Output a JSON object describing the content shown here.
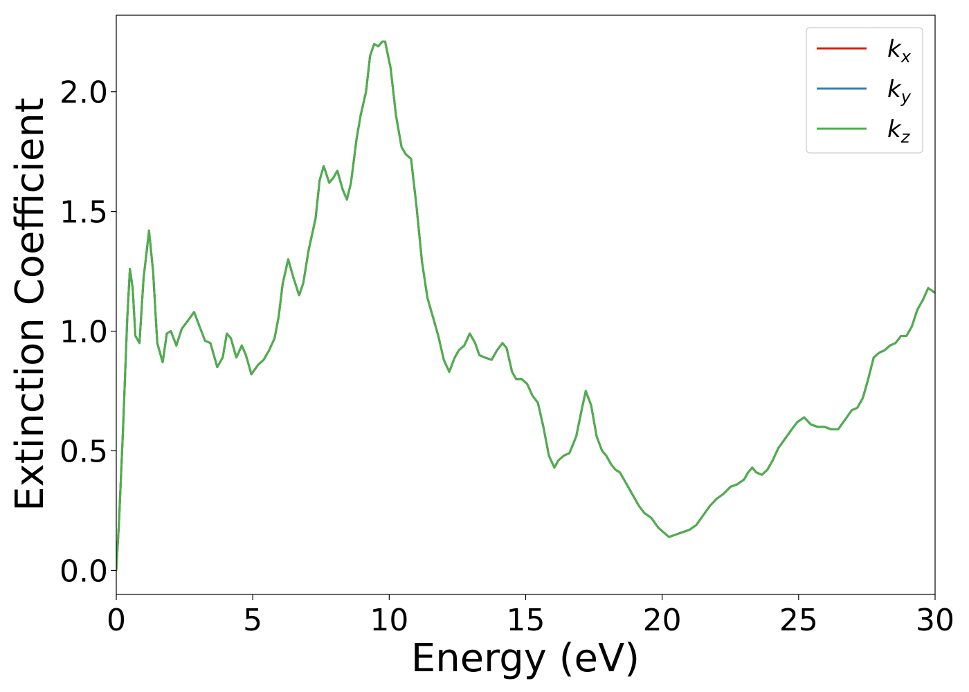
{
  "chart_data": {
    "type": "line",
    "xlabel": "Energy (eV)",
    "ylabel": "Extinction Coefficient",
    "xlim": [
      0,
      30
    ],
    "ylim": [
      -0.1,
      2.32
    ],
    "xticks": [
      "0",
      "5",
      "10",
      "15",
      "20",
      "25",
      "30"
    ],
    "yticks": [
      "0.0",
      "0.5",
      "1.0",
      "1.5",
      "2.0"
    ],
    "grid": false,
    "legend": {
      "placement": "top-right",
      "entries": [
        {
          "base": "k",
          "sub": "x",
          "color": "#e41a1c"
        },
        {
          "base": "k",
          "sub": "y",
          "color": "#377eb8"
        },
        {
          "base": "k",
          "sub": "z",
          "color": "#4daf4a"
        }
      ]
    },
    "x": [
      0,
      0.1,
      0.25,
      0.4,
      0.5,
      0.6,
      0.7,
      0.85,
      1.0,
      1.2,
      1.35,
      1.5,
      1.7,
      1.85,
      2.0,
      2.2,
      2.4,
      2.6,
      2.85,
      3.05,
      3.25,
      3.45,
      3.7,
      3.9,
      4.05,
      4.2,
      4.4,
      4.6,
      4.75,
      4.95,
      5.2,
      5.4,
      5.6,
      5.8,
      5.95,
      6.1,
      6.3,
      6.5,
      6.7,
      6.85,
      7.05,
      7.3,
      7.45,
      7.6,
      7.8,
      7.95,
      8.1,
      8.3,
      8.45,
      8.6,
      8.8,
      8.95,
      9.15,
      9.3,
      9.45,
      9.6,
      9.75,
      9.85,
      10.05,
      10.25,
      10.45,
      10.6,
      10.8,
      11.0,
      11.2,
      11.4,
      11.6,
      11.8,
      12.0,
      12.2,
      12.4,
      12.55,
      12.75,
      12.95,
      13.15,
      13.3,
      13.5,
      13.75,
      13.95,
      14.15,
      14.3,
      14.5,
      14.65,
      14.85,
      15.05,
      15.25,
      15.45,
      15.65,
      15.85,
      16.05,
      16.2,
      16.4,
      16.6,
      16.85,
      17.05,
      17.2,
      17.4,
      17.6,
      17.8,
      17.95,
      18.15,
      18.3,
      18.45,
      18.6,
      18.75,
      18.95,
      19.15,
      19.35,
      19.6,
      19.85,
      20.05,
      20.25,
      20.5,
      20.75,
      21.0,
      21.25,
      21.5,
      21.75,
      22.0,
      22.25,
      22.5,
      22.75,
      23.0,
      23.15,
      23.3,
      23.45,
      23.65,
      23.85,
      24.05,
      24.25,
      24.5,
      24.75,
      24.95,
      25.2,
      25.45,
      25.7,
      25.95,
      26.2,
      26.45,
      26.7,
      26.95,
      27.15,
      27.35,
      27.55,
      27.75,
      27.95,
      28.15,
      28.35,
      28.55,
      28.75,
      28.95,
      29.15,
      29.35,
      29.55,
      29.75,
      30.0
    ],
    "series": [
      {
        "name": "k_x",
        "color": "#e41a1c",
        "values": [
          0.0,
          0.2,
          0.6,
          1.05,
          1.26,
          1.18,
          0.98,
          0.95,
          1.22,
          1.42,
          1.25,
          0.95,
          0.87,
          0.99,
          1.0,
          0.94,
          1.01,
          1.04,
          1.08,
          1.02,
          0.96,
          0.95,
          0.85,
          0.89,
          0.99,
          0.97,
          0.89,
          0.94,
          0.9,
          0.82,
          0.86,
          0.88,
          0.92,
          0.97,
          1.06,
          1.2,
          1.3,
          1.22,
          1.15,
          1.2,
          1.34,
          1.47,
          1.63,
          1.69,
          1.62,
          1.64,
          1.67,
          1.59,
          1.55,
          1.62,
          1.8,
          1.9,
          2.0,
          2.15,
          2.2,
          2.19,
          2.21,
          2.21,
          2.1,
          1.9,
          1.77,
          1.74,
          1.72,
          1.52,
          1.29,
          1.14,
          1.06,
          0.98,
          0.88,
          0.83,
          0.89,
          0.92,
          0.94,
          0.99,
          0.95,
          0.9,
          0.89,
          0.88,
          0.92,
          0.95,
          0.93,
          0.83,
          0.8,
          0.8,
          0.78,
          0.73,
          0.7,
          0.6,
          0.48,
          0.43,
          0.46,
          0.48,
          0.49,
          0.56,
          0.67,
          0.75,
          0.69,
          0.56,
          0.5,
          0.48,
          0.44,
          0.42,
          0.41,
          0.38,
          0.35,
          0.31,
          0.27,
          0.24,
          0.22,
          0.18,
          0.16,
          0.14,
          0.15,
          0.16,
          0.17,
          0.19,
          0.23,
          0.27,
          0.3,
          0.32,
          0.35,
          0.36,
          0.38,
          0.41,
          0.43,
          0.41,
          0.4,
          0.42,
          0.46,
          0.51,
          0.55,
          0.59,
          0.62,
          0.64,
          0.61,
          0.6,
          0.6,
          0.59,
          0.59,
          0.63,
          0.67,
          0.68,
          0.72,
          0.8,
          0.89,
          0.91,
          0.92,
          0.94,
          0.95,
          0.98,
          0.98,
          1.02,
          1.09,
          1.13,
          1.18,
          1.16
        ]
      },
      {
        "name": "k_y",
        "color": "#377eb8",
        "values": [
          0.0,
          0.2,
          0.6,
          1.05,
          1.26,
          1.18,
          0.98,
          0.95,
          1.22,
          1.42,
          1.25,
          0.95,
          0.87,
          0.99,
          1.0,
          0.94,
          1.01,
          1.04,
          1.08,
          1.02,
          0.96,
          0.95,
          0.85,
          0.89,
          0.99,
          0.97,
          0.89,
          0.94,
          0.9,
          0.82,
          0.86,
          0.88,
          0.92,
          0.97,
          1.06,
          1.2,
          1.3,
          1.22,
          1.15,
          1.2,
          1.34,
          1.47,
          1.63,
          1.69,
          1.62,
          1.64,
          1.67,
          1.59,
          1.55,
          1.62,
          1.8,
          1.9,
          2.0,
          2.15,
          2.2,
          2.19,
          2.21,
          2.21,
          2.1,
          1.9,
          1.77,
          1.74,
          1.72,
          1.52,
          1.29,
          1.14,
          1.06,
          0.98,
          0.88,
          0.83,
          0.89,
          0.92,
          0.94,
          0.99,
          0.95,
          0.9,
          0.89,
          0.88,
          0.92,
          0.95,
          0.93,
          0.83,
          0.8,
          0.8,
          0.78,
          0.73,
          0.7,
          0.6,
          0.48,
          0.43,
          0.46,
          0.48,
          0.49,
          0.56,
          0.67,
          0.75,
          0.69,
          0.56,
          0.5,
          0.48,
          0.44,
          0.42,
          0.41,
          0.38,
          0.35,
          0.31,
          0.27,
          0.24,
          0.22,
          0.18,
          0.16,
          0.14,
          0.15,
          0.16,
          0.17,
          0.19,
          0.23,
          0.27,
          0.3,
          0.32,
          0.35,
          0.36,
          0.38,
          0.41,
          0.43,
          0.41,
          0.4,
          0.42,
          0.46,
          0.51,
          0.55,
          0.59,
          0.62,
          0.64,
          0.61,
          0.6,
          0.6,
          0.59,
          0.59,
          0.63,
          0.67,
          0.68,
          0.72,
          0.8,
          0.89,
          0.91,
          0.92,
          0.94,
          0.95,
          0.98,
          0.98,
          1.02,
          1.09,
          1.13,
          1.18,
          1.16
        ]
      },
      {
        "name": "k_z",
        "color": "#4daf4a",
        "values": [
          0.0,
          0.2,
          0.6,
          1.05,
          1.26,
          1.18,
          0.98,
          0.95,
          1.22,
          1.42,
          1.25,
          0.95,
          0.87,
          0.99,
          1.0,
          0.94,
          1.01,
          1.04,
          1.08,
          1.02,
          0.96,
          0.95,
          0.85,
          0.89,
          0.99,
          0.97,
          0.89,
          0.94,
          0.9,
          0.82,
          0.86,
          0.88,
          0.92,
          0.97,
          1.06,
          1.2,
          1.3,
          1.22,
          1.15,
          1.2,
          1.34,
          1.47,
          1.63,
          1.69,
          1.62,
          1.64,
          1.67,
          1.59,
          1.55,
          1.62,
          1.8,
          1.9,
          2.0,
          2.15,
          2.2,
          2.19,
          2.21,
          2.21,
          2.1,
          1.9,
          1.77,
          1.74,
          1.72,
          1.52,
          1.29,
          1.14,
          1.06,
          0.98,
          0.88,
          0.83,
          0.89,
          0.92,
          0.94,
          0.99,
          0.95,
          0.9,
          0.89,
          0.88,
          0.92,
          0.95,
          0.93,
          0.83,
          0.8,
          0.8,
          0.78,
          0.73,
          0.7,
          0.6,
          0.48,
          0.43,
          0.46,
          0.48,
          0.49,
          0.56,
          0.67,
          0.75,
          0.69,
          0.56,
          0.5,
          0.48,
          0.44,
          0.42,
          0.41,
          0.38,
          0.35,
          0.31,
          0.27,
          0.24,
          0.22,
          0.18,
          0.16,
          0.14,
          0.15,
          0.16,
          0.17,
          0.19,
          0.23,
          0.27,
          0.3,
          0.32,
          0.35,
          0.36,
          0.38,
          0.41,
          0.43,
          0.41,
          0.4,
          0.42,
          0.46,
          0.51,
          0.55,
          0.59,
          0.62,
          0.64,
          0.61,
          0.6,
          0.6,
          0.59,
          0.59,
          0.63,
          0.67,
          0.68,
          0.72,
          0.8,
          0.89,
          0.91,
          0.92,
          0.94,
          0.95,
          0.98,
          0.98,
          1.02,
          1.09,
          1.13,
          1.18,
          1.16
        ]
      }
    ]
  }
}
